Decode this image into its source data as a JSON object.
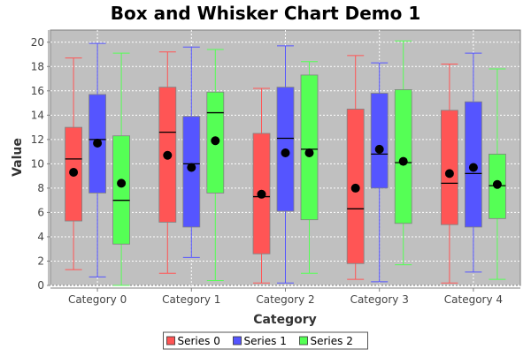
{
  "chart_data": {
    "type": "box",
    "title": "Box and Whisker Chart Demo 1",
    "xlabel": "Category",
    "ylabel": "Value",
    "ylim": [
      0,
      21
    ],
    "yticks": [
      0,
      2,
      4,
      6,
      8,
      10,
      12,
      14,
      16,
      18,
      20
    ],
    "grid": true,
    "legend_position": "bottom",
    "categories": [
      "Category 0",
      "Category 1",
      "Category 2",
      "Category 3",
      "Category 4"
    ],
    "series": [
      {
        "name": "Series 0",
        "color": "#ff5555",
        "boxes": [
          {
            "min": 1.3,
            "q1": 5.3,
            "median": 10.4,
            "q3": 13.0,
            "max": 18.7,
            "mean": 9.3
          },
          {
            "min": 1.0,
            "q1": 5.2,
            "median": 12.6,
            "q3": 16.3,
            "max": 19.2,
            "mean": 10.7
          },
          {
            "min": 0.2,
            "q1": 2.6,
            "median": 7.3,
            "q3": 12.5,
            "max": 16.2,
            "mean": 7.5
          },
          {
            "min": 0.5,
            "q1": 1.8,
            "median": 6.3,
            "q3": 14.5,
            "max": 18.9,
            "mean": 8.0
          },
          {
            "min": 0.2,
            "q1": 5.0,
            "median": 8.4,
            "q3": 14.4,
            "max": 18.2,
            "mean": 9.2
          }
        ]
      },
      {
        "name": "Series 1",
        "color": "#5555ff",
        "boxes": [
          {
            "min": 0.7,
            "q1": 7.6,
            "median": 12.0,
            "q3": 15.7,
            "max": 19.9,
            "mean": 11.7
          },
          {
            "min": 2.3,
            "q1": 4.8,
            "median": 10.0,
            "q3": 13.9,
            "max": 19.6,
            "mean": 9.7
          },
          {
            "min": 0.2,
            "q1": 6.1,
            "median": 12.1,
            "q3": 16.3,
            "max": 19.7,
            "mean": 10.9
          },
          {
            "min": 0.3,
            "q1": 8.0,
            "median": 10.8,
            "q3": 15.8,
            "max": 18.3,
            "mean": 11.2
          },
          {
            "min": 1.1,
            "q1": 4.8,
            "median": 9.2,
            "q3": 15.1,
            "max": 19.1,
            "mean": 9.7
          }
        ]
      },
      {
        "name": "Series 2",
        "color": "#55ff55",
        "boxes": [
          {
            "min": 0.0,
            "q1": 3.4,
            "median": 7.0,
            "q3": 12.3,
            "max": 19.1,
            "mean": 8.4
          },
          {
            "min": 0.4,
            "q1": 7.6,
            "median": 14.2,
            "q3": 15.9,
            "max": 19.4,
            "mean": 11.9
          },
          {
            "min": 1.0,
            "q1": 5.4,
            "median": 11.2,
            "q3": 17.3,
            "max": 18.4,
            "mean": 10.9
          },
          {
            "min": 1.7,
            "q1": 5.1,
            "median": 10.1,
            "q3": 16.1,
            "max": 20.1,
            "mean": 10.2
          },
          {
            "min": 0.5,
            "q1": 5.5,
            "median": 8.2,
            "q3": 10.8,
            "max": 17.8,
            "mean": 8.3
          }
        ]
      }
    ]
  }
}
